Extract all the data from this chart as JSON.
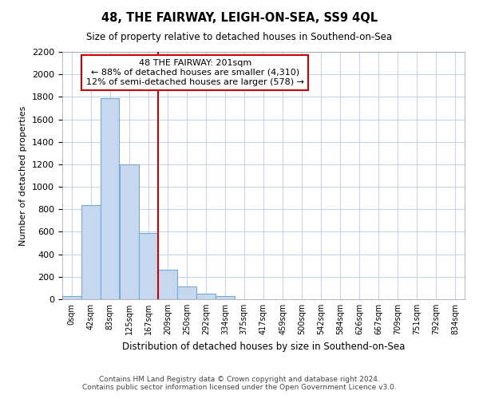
{
  "title": "48, THE FAIRWAY, LEIGH-ON-SEA, SS9 4QL",
  "subtitle": "Size of property relative to detached houses in Southend-on-Sea",
  "xlabel": "Distribution of detached houses by size in Southend-on-Sea",
  "ylabel": "Number of detached properties",
  "bin_labels": [
    "0sqm",
    "42sqm",
    "83sqm",
    "125sqm",
    "167sqm",
    "209sqm",
    "250sqm",
    "292sqm",
    "334sqm",
    "375sqm",
    "417sqm",
    "459sqm",
    "500sqm",
    "542sqm",
    "584sqm",
    "626sqm",
    "667sqm",
    "709sqm",
    "751sqm",
    "792sqm",
    "834sqm"
  ],
  "bar_heights": [
    30,
    840,
    1790,
    1200,
    590,
    260,
    115,
    50,
    30,
    0,
    0,
    0,
    0,
    0,
    0,
    0,
    0,
    0,
    0,
    0,
    0
  ],
  "bar_color": "#c5d8f0",
  "bar_edge_color": "#7aa8d4",
  "background_color": "#ffffff",
  "grid_color": "#c8d4e8",
  "annotation_text_line1": "48 THE FAIRWAY: 201sqm",
  "annotation_text_line2": "← 88% of detached houses are smaller (4,310)",
  "annotation_text_line3": "12% of semi-detached houses are larger (578) →",
  "annotation_box_color": "#cc0000",
  "annotation_fill_color": "#ffffff",
  "vline_color": "#cc0000",
  "ylim": [
    0,
    2200
  ],
  "yticks": [
    0,
    200,
    400,
    600,
    800,
    1000,
    1200,
    1400,
    1600,
    1800,
    2000,
    2200
  ],
  "footnote1": "Contains HM Land Registry data © Crown copyright and database right 2024.",
  "footnote2": "Contains public sector information licensed under the Open Government Licence v3.0.",
  "bin_width": 41,
  "vline_x": 209
}
